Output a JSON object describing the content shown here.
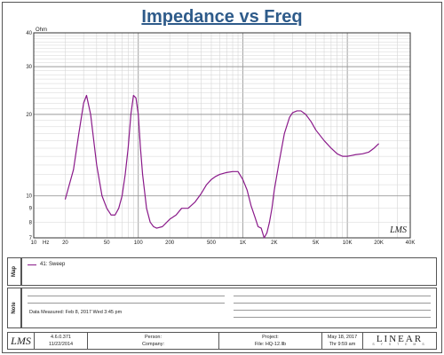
{
  "title": "Impedance vs Freq",
  "chart_data": {
    "type": "line",
    "title": "Impedance vs Freq",
    "ylabel": "Ohm",
    "xlabel": "Hz",
    "x_scale": "log",
    "y_scale": "log",
    "xlim": [
      10,
      40000
    ],
    "ylim": [
      7,
      40
    ],
    "x_ticks": [
      10,
      50,
      100,
      500,
      1000,
      5000,
      10000,
      40000
    ],
    "x_tick_labels": [
      "10",
      "20",
      "50",
      "100",
      "200",
      "500",
      "1K",
      "2K",
      "5K",
      "10K",
      "20K",
      "40K"
    ],
    "x_tick_values": [
      10,
      20,
      50,
      100,
      200,
      500,
      1000,
      2000,
      5000,
      10000,
      20000,
      40000
    ],
    "y_tick_labels": [
      "7",
      "8",
      "9",
      "10",
      "20",
      "30",
      "40"
    ],
    "y_tick_values": [
      7,
      8,
      9,
      10,
      20,
      30,
      40
    ],
    "grid": true,
    "logo_text": "LMS",
    "series": [
      {
        "name": "41: Sweep",
        "color": "#8a1a8a",
        "x": [
          20,
          24,
          27,
          30,
          32,
          35,
          40,
          45,
          50,
          55,
          60,
          65,
          70,
          75,
          80,
          85,
          90,
          95,
          100,
          105,
          110,
          120,
          130,
          140,
          150,
          170,
          200,
          230,
          260,
          300,
          350,
          400,
          450,
          500,
          550,
          600,
          700,
          800,
          900,
          1000,
          1100,
          1200,
          1300,
          1400,
          1500,
          1600,
          1700,
          1800,
          1900,
          2000,
          2200,
          2500,
          2800,
          3000,
          3300,
          3600,
          4000,
          4500,
          5000,
          6000,
          7000,
          8000,
          9000,
          10000,
          11000,
          12000,
          14000,
          16000,
          18000,
          20000
        ],
        "y": [
          9.7,
          12.5,
          17,
          22,
          23.5,
          20,
          13,
          10,
          9,
          8.5,
          8.5,
          9,
          10,
          12,
          15,
          20,
          23.5,
          23,
          20,
          15,
          12,
          9,
          8,
          7.7,
          7.6,
          7.7,
          8.2,
          8.5,
          9,
          9,
          9.5,
          10.2,
          11,
          11.5,
          11.8,
          12,
          12.2,
          12.3,
          12.3,
          11.5,
          10.5,
          9.2,
          8.4,
          7.7,
          7.6,
          7.0,
          7.3,
          8.0,
          9.0,
          10.5,
          13.0,
          17.0,
          19.5,
          20.3,
          20.6,
          20.6,
          20.0,
          18.8,
          17.5,
          16.0,
          15.0,
          14.3,
          14.0,
          14.0,
          14.1,
          14.2,
          14.3,
          14.5,
          15.0,
          15.6
        ]
      }
    ]
  },
  "side_labels": {
    "map": "Map",
    "note": "Note"
  },
  "legend": {
    "entry": "41: Sweep"
  },
  "notes": {
    "data_measured": "Data Measured: Feb  8, 2017  Wed  3:45 pm"
  },
  "footer": {
    "logo": "LMS",
    "version": "4.6.0.371",
    "build_date": "11/22/2014",
    "person_label": "Person:",
    "company_label": "Company:",
    "project_label": "Project:",
    "file_label": "File: HQ-12.llb",
    "date": "May 18, 2017",
    "time": "Thr  9:59 am",
    "brand": "LINEAR",
    "brand_sub": "S Y S T E M S"
  }
}
